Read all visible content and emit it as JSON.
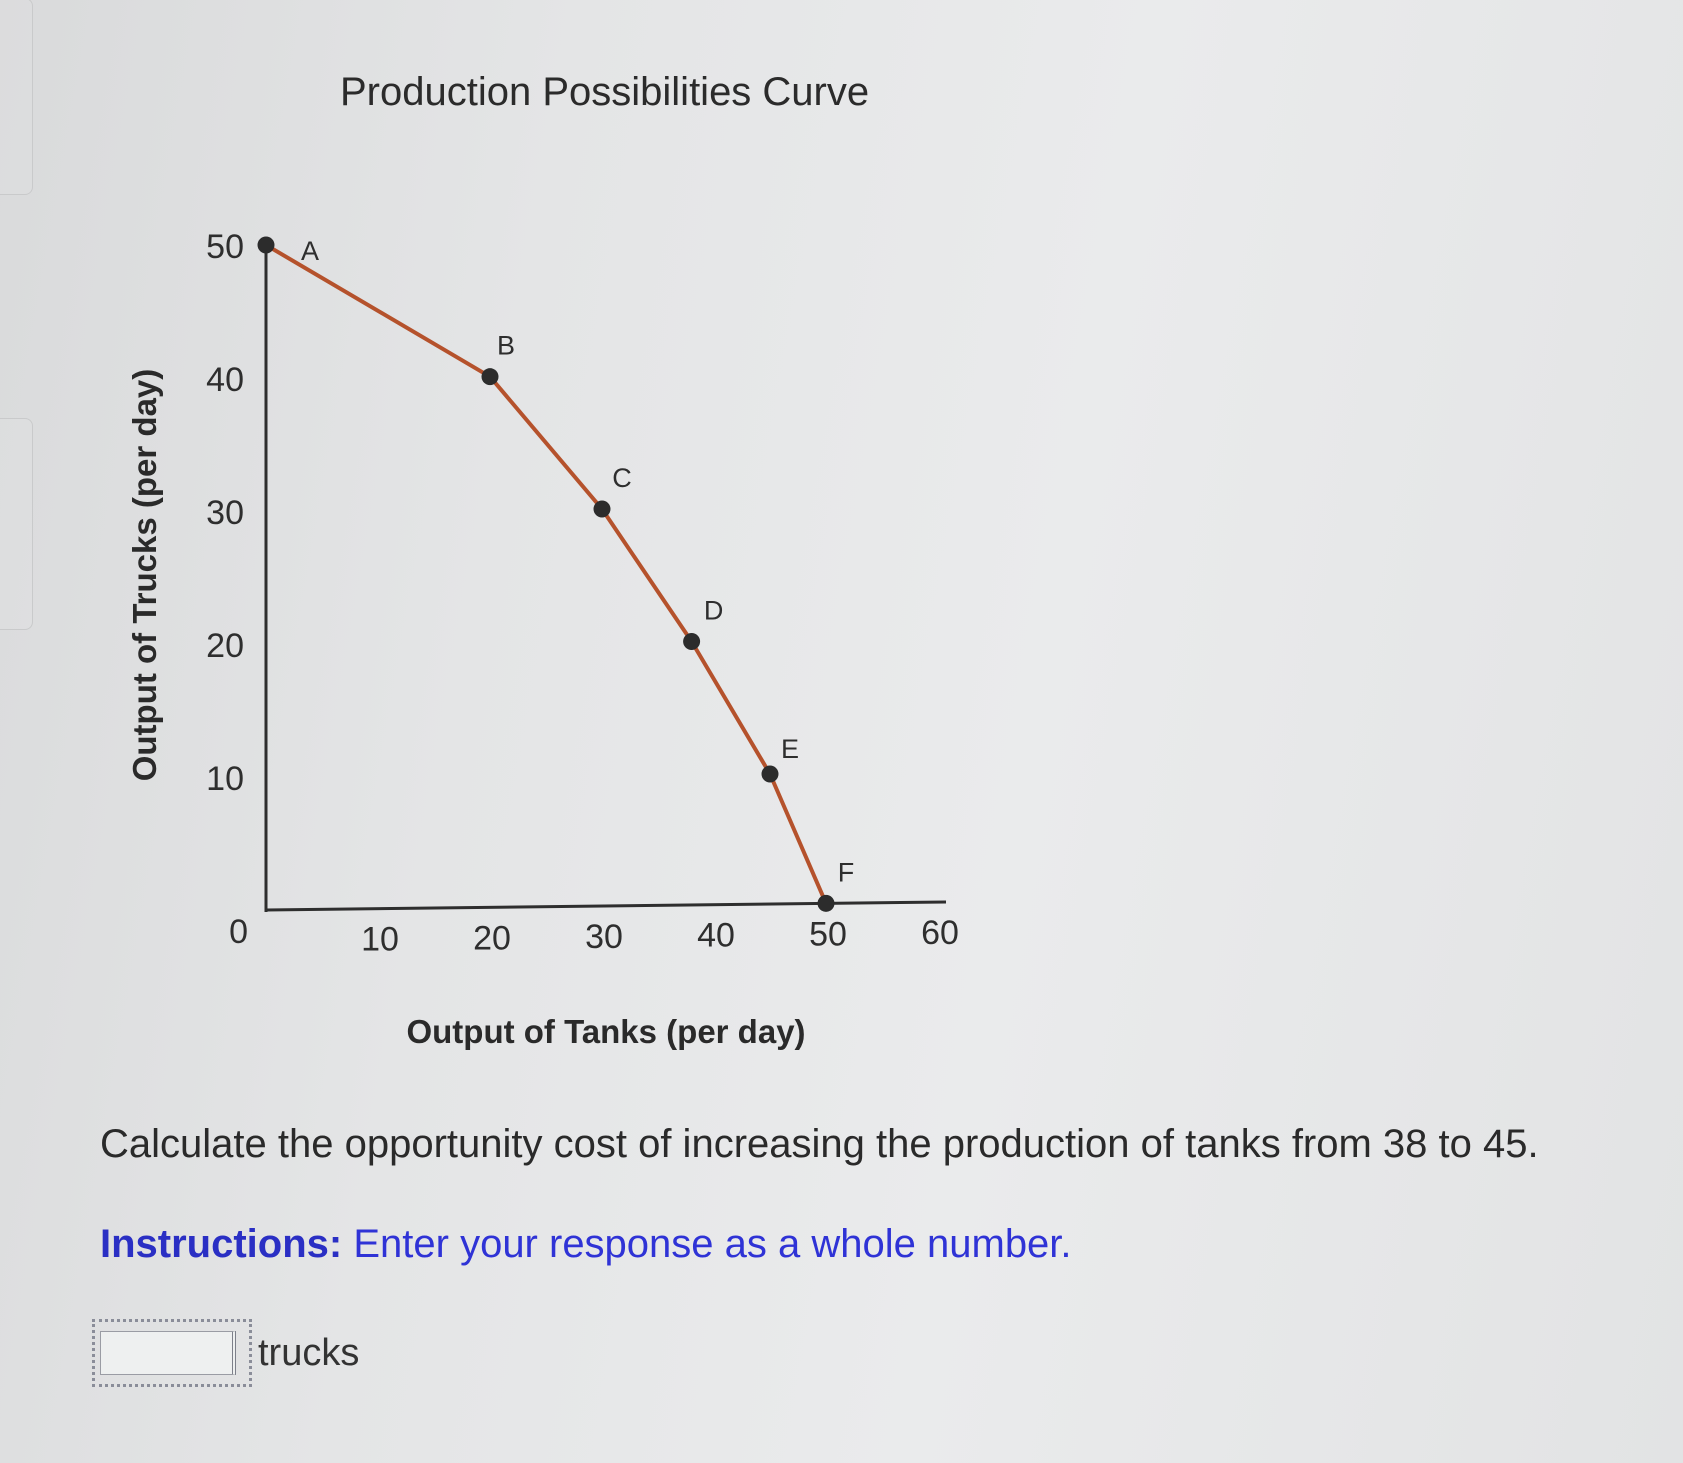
{
  "chart_data": {
    "type": "line",
    "title": "Production Possibilities Curve",
    "xlabel": "Output of Tanks (per day)",
    "ylabel": "Output of Trucks (per day)",
    "xlim": [
      0,
      60
    ],
    "ylim": [
      0,
      50
    ],
    "x_ticks": [
      "10",
      "20",
      "30",
      "40",
      "50",
      "60"
    ],
    "y_ticks": [
      "0",
      "10",
      "20",
      "30",
      "40",
      "50"
    ],
    "grid": false,
    "points": [
      {
        "label": "A",
        "x": 0,
        "y": 50
      },
      {
        "label": "B",
        "x": 20,
        "y": 40
      },
      {
        "label": "C",
        "x": 30,
        "y": 30
      },
      {
        "label": "D",
        "x": 38,
        "y": 20
      },
      {
        "label": "E",
        "x": 45,
        "y": 10
      },
      {
        "label": "F",
        "x": 50,
        "y": 0
      }
    ],
    "line_color": "#b5522c",
    "point_color": "#2c2c2c"
  },
  "question": {
    "text": "Calculate the opportunity cost of increasing the production of tanks from 38 to 45.",
    "instructions_label": "Instructions:",
    "instructions_text": " Enter your response as a whole number.",
    "answer_value": "",
    "answer_unit": "trucks"
  }
}
